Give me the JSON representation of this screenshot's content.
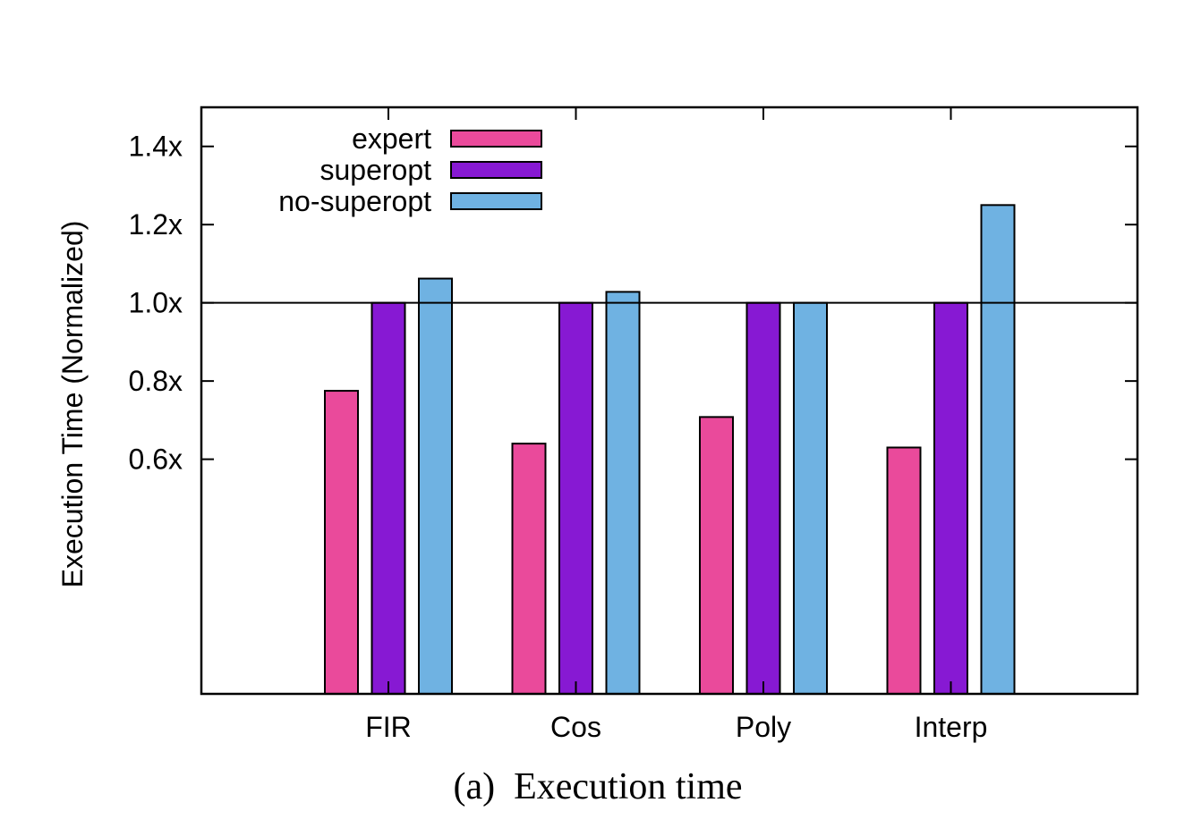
{
  "chart_data": {
    "type": "bar",
    "categories": [
      "FIR",
      "Cos",
      "Poly",
      "Interp"
    ],
    "series": [
      {
        "name": "expert",
        "color": "#ea4a9b",
        "values": [
          0.775,
          0.64,
          0.708,
          0.63
        ]
      },
      {
        "name": "superopt",
        "color": "#8719d3",
        "values": [
          1.0,
          1.0,
          1.0,
          1.0
        ]
      },
      {
        "name": "no-superopt",
        "color": "#6fb2e2",
        "values": [
          1.062,
          1.028,
          1.0,
          1.25
        ]
      }
    ],
    "yticks": [
      0.6,
      0.8,
      1.0,
      1.2,
      1.4
    ],
    "ytick_labels": [
      "0.6x",
      "0.8x",
      "1.0x",
      "1.2x",
      "1.4x"
    ],
    "ylim": [
      0.0,
      1.5
    ],
    "reference_line": 1.0,
    "ylabel": "Execution Time (Normalized)",
    "xlabel": "",
    "legend_position": "top-left",
    "grid": false,
    "caption": "(a)  Execution time"
  }
}
